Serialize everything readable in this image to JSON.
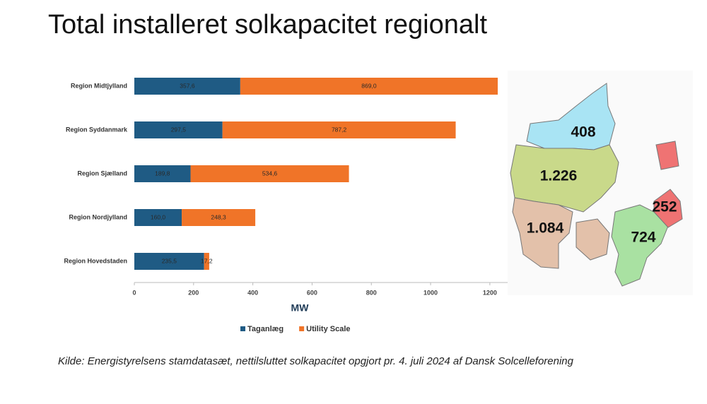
{
  "title": "Total installeret solkapacitet regionalt",
  "chart_data": {
    "type": "stacked-barh",
    "categories": [
      "Region Midtjylland",
      "Region Syddanmark",
      "Region Sjælland",
      "Region Nordjylland",
      "Region Hovedstaden"
    ],
    "series": [
      {
        "name": "Taganlæg",
        "color": "#1f5b84",
        "values": [
          357.6,
          297.5,
          189.8,
          160.0,
          235.5
        ],
        "value_labels": [
          "357,6",
          "297,5",
          "189,8",
          "160,0",
          "235,5"
        ]
      },
      {
        "name": "Utility Scale",
        "color": "#f07428",
        "values": [
          869.0,
          787.2,
          534.6,
          248.3,
          17.2
        ],
        "value_labels": [
          "869,0",
          "787,2",
          "534,6",
          "248,3",
          "17,2"
        ]
      }
    ],
    "xlabel": "MW",
    "xlim": [
      0,
      1260
    ],
    "xticks": [
      0,
      200,
      400,
      600,
      800,
      1000,
      1200
    ],
    "legend": "bottom"
  },
  "map": {
    "regions": [
      {
        "label": "408"
      },
      {
        "label": "1.226"
      },
      {
        "label": "1.084"
      },
      {
        "label": "724"
      },
      {
        "label": "252"
      }
    ]
  },
  "source": "Kilde: Energistyrelsens stamdatasæt, nettilsluttet solkapacitet opgjort pr. 4. juli 2024 af Dansk Solcelleforening"
}
